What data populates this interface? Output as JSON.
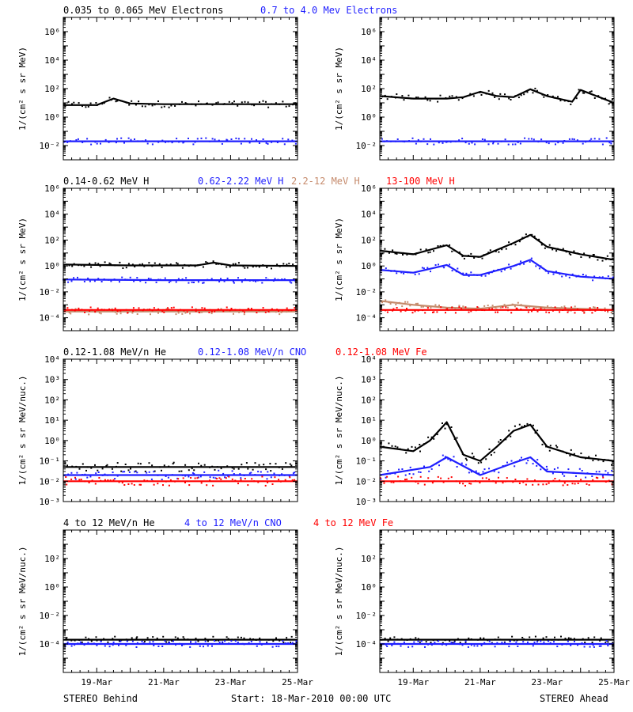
{
  "colors": {
    "black": "#000000",
    "blue": "#1f1fff",
    "brown": "#c58a6b",
    "red": "#ff0000"
  },
  "header_rows": [
    {
      "labels": [
        {
          "text": "0.035 to 0.065 MeV Electrons",
          "color": "#000000"
        },
        {
          "text": "0.7 to 4.0 Mev Electrons",
          "color": "#1f1fff"
        }
      ]
    },
    {
      "labels": [
        {
          "text": "0.14-0.62 MeV H",
          "color": "#000000"
        },
        {
          "text": "0.62-2.22 MeV H",
          "color": "#1f1fff"
        },
        {
          "text": "2.2-12 MeV H",
          "color": "#c58a6b"
        },
        {
          "text": "13-100 MeV H",
          "color": "#ff0000"
        }
      ]
    },
    {
      "labels": [
        {
          "text": "0.12-1.08 MeV/n He",
          "color": "#000000"
        },
        {
          "text": "0.12-1.08 MeV/n CNO",
          "color": "#1f1fff"
        },
        {
          "text": "0.12-1.08 MeV Fe",
          "color": "#ff0000"
        }
      ]
    },
    {
      "labels": [
        {
          "text": "4 to 12 MeV/n He",
          "color": "#000000"
        },
        {
          "text": "4 to 12 MeV/n CNO",
          "color": "#1f1fff"
        },
        {
          "text": "4 to 12 MeV Fe",
          "color": "#ff0000"
        }
      ]
    }
  ],
  "footer": {
    "left": "STEREO Behind",
    "center": "Start: 18-Mar-2010 00:00 UTC",
    "right": "STEREO Ahead"
  },
  "x_ticks": [
    "19-Mar",
    "21-Mar",
    "23-Mar",
    "25-Mar"
  ],
  "chart_data": [
    {
      "type": "scatter",
      "row": 0,
      "column": "STEREO Behind",
      "scale": "log",
      "ylabel": "1/(cm² s sr MeV)",
      "ylim": [
        0.001,
        10000000
      ],
      "yticks": [
        [
          -2,
          "10⁻²"
        ],
        [
          0,
          "10⁰"
        ],
        [
          2,
          "10²"
        ],
        [
          4,
          "10⁴"
        ],
        [
          6,
          "10⁶"
        ]
      ],
      "xlim": [
        "2010-03-18",
        "2010-03-25"
      ],
      "series": [
        {
          "name": "0.035 to 0.065 MeV Electrons",
          "color": "#000000",
          "x": [
            "2010-03-18",
            "2010-03-19",
            "2010-03-19 12:00",
            "2010-03-20",
            "2010-03-21",
            "2010-03-22",
            "2010-03-23",
            "2010-03-24",
            "2010-03-25"
          ],
          "y": [
            7,
            7,
            20,
            9,
            8,
            8,
            8,
            8,
            8
          ]
        },
        {
          "name": "0.7 to 4.0 Mev Electrons",
          "color": "#1f1fff",
          "x": [
            "2010-03-18",
            "2010-03-20",
            "2010-03-22",
            "2010-03-24",
            "2010-03-25"
          ],
          "y": [
            0.02,
            0.02,
            0.02,
            0.02,
            0.02
          ]
        }
      ]
    },
    {
      "type": "scatter",
      "row": 0,
      "column": "STEREO Ahead",
      "scale": "log",
      "ylabel": "1/(cm² s sr MeV)",
      "ylim": [
        0.001,
        10000000
      ],
      "yticks": [
        [
          -2,
          "10⁻²"
        ],
        [
          0,
          "10⁰"
        ],
        [
          2,
          "10²"
        ],
        [
          4,
          "10⁴"
        ],
        [
          6,
          "10⁶"
        ]
      ],
      "xlim": [
        "2010-03-18",
        "2010-03-25"
      ],
      "series": [
        {
          "name": "0.035 to 0.065 MeV Electrons",
          "color": "#000000",
          "x": [
            "2010-03-18",
            "2010-03-19",
            "2010-03-20",
            "2010-03-20 12:00",
            "2010-03-21",
            "2010-03-21 12:00",
            "2010-03-22",
            "2010-03-22 12:00",
            "2010-03-23",
            "2010-03-23 18:00",
            "2010-03-24",
            "2010-03-25"
          ],
          "y": [
            30,
            20,
            20,
            25,
            60,
            30,
            25,
            90,
            30,
            12,
            80,
            10
          ]
        },
        {
          "name": "0.7 to 4.0 Mev Electrons",
          "color": "#1f1fff",
          "x": [
            "2010-03-18",
            "2010-03-20",
            "2010-03-22",
            "2010-03-24",
            "2010-03-25"
          ],
          "y": [
            0.02,
            0.02,
            0.02,
            0.02,
            0.02
          ]
        }
      ]
    },
    {
      "type": "scatter",
      "row": 1,
      "column": "STEREO Behind",
      "scale": "log",
      "ylabel": "1/(cm² s sr MeV)",
      "ylim": [
        1e-05,
        1000000
      ],
      "yticks": [
        [
          -4,
          "10⁻⁴"
        ],
        [
          -2,
          "10⁻²"
        ],
        [
          0,
          "10⁰"
        ],
        [
          2,
          "10²"
        ],
        [
          4,
          "10⁴"
        ],
        [
          6,
          "10⁶"
        ]
      ],
      "xlim": [
        "2010-03-18",
        "2010-03-25"
      ],
      "series": [
        {
          "name": "0.14-0.62 MeV H",
          "color": "#000000",
          "x": [
            "2010-03-18",
            "2010-03-20",
            "2010-03-22",
            "2010-03-22 12:00",
            "2010-03-23",
            "2010-03-25"
          ],
          "y": [
            1.3,
            1.1,
            1.1,
            1.8,
            1.1,
            1.0
          ]
        },
        {
          "name": "0.62-2.22 MeV H",
          "color": "#1f1fff",
          "x": [
            "2010-03-18",
            "2010-03-21",
            "2010-03-25"
          ],
          "y": [
            0.09,
            0.08,
            0.08
          ]
        },
        {
          "name": "2.2-12 MeV H",
          "color": "#c58a6b",
          "x": [
            "2010-03-18",
            "2010-03-21",
            "2010-03-25"
          ],
          "y": [
            0.0003,
            0.0003,
            0.0003
          ]
        },
        {
          "name": "13-100 MeV H",
          "color": "#ff0000",
          "x": [
            "2010-03-18",
            "2010-03-21",
            "2010-03-25"
          ],
          "y": [
            0.0004,
            0.0004,
            0.0004
          ]
        }
      ]
    },
    {
      "type": "scatter",
      "row": 1,
      "column": "STEREO Ahead",
      "scale": "log",
      "ylabel": "1/(cm² s sr MeV)",
      "ylim": [
        1e-05,
        1000000
      ],
      "yticks": [
        [
          -4,
          "10⁻⁴"
        ],
        [
          -2,
          "10⁻²"
        ],
        [
          0,
          "10⁰"
        ],
        [
          2,
          "10²"
        ],
        [
          4,
          "10⁴"
        ],
        [
          6,
          "10⁶"
        ]
      ],
      "xlim": [
        "2010-03-18",
        "2010-03-25"
      ],
      "series": [
        {
          "name": "0.14-0.62 MeV H",
          "color": "#000000",
          "x": [
            "2010-03-18",
            "2010-03-19",
            "2010-03-20",
            "2010-03-20 12:00",
            "2010-03-21",
            "2010-03-22",
            "2010-03-22 12:00",
            "2010-03-23",
            "2010-03-24",
            "2010-03-25"
          ],
          "y": [
            15,
            8,
            40,
            6,
            5,
            60,
            250,
            30,
            8,
            3
          ]
        },
        {
          "name": "0.62-2.22 MeV H",
          "color": "#1f1fff",
          "x": [
            "2010-03-18",
            "2010-03-19",
            "2010-03-20",
            "2010-03-20 12:00",
            "2010-03-21",
            "2010-03-22",
            "2010-03-22 12:00",
            "2010-03-23",
            "2010-03-24",
            "2010-03-25"
          ],
          "y": [
            0.5,
            0.3,
            1.2,
            0.2,
            0.2,
            1.0,
            3,
            0.4,
            0.15,
            0.1
          ]
        },
        {
          "name": "2.2-12 MeV H",
          "color": "#c58a6b",
          "x": [
            "2010-03-18",
            "2010-03-19",
            "2010-03-20",
            "2010-03-21",
            "2010-03-22",
            "2010-03-23",
            "2010-03-25"
          ],
          "y": [
            0.002,
            0.001,
            0.0006,
            0.0005,
            0.001,
            0.0006,
            0.0004
          ]
        },
        {
          "name": "13-100 MeV H",
          "color": "#ff0000",
          "x": [
            "2010-03-18",
            "2010-03-21",
            "2010-03-25"
          ],
          "y": [
            0.0004,
            0.0004,
            0.0004
          ]
        }
      ]
    },
    {
      "type": "scatter",
      "row": 2,
      "column": "STEREO Behind",
      "scale": "log",
      "ylabel": "1/(cm² s sr MeV/nuc.)",
      "ylim": [
        0.001,
        10000
      ],
      "yticks": [
        [
          -3,
          "10⁻³"
        ],
        [
          -2,
          "10⁻²"
        ],
        [
          -1,
          "10⁻¹"
        ],
        [
          0,
          "10⁰"
        ],
        [
          1,
          "10¹"
        ],
        [
          2,
          "10²"
        ],
        [
          3,
          "10³"
        ],
        [
          4,
          "10⁴"
        ]
      ],
      "xlim": [
        "2010-03-18",
        "2010-03-25"
      ],
      "series": [
        {
          "name": "0.12-1.08 MeV/n He",
          "color": "#000000",
          "x": [
            "2010-03-18",
            "2010-03-21",
            "2010-03-25"
          ],
          "y": [
            0.05,
            0.05,
            0.05
          ]
        },
        {
          "name": "0.12-1.08 MeV/n CNO",
          "color": "#1f1fff",
          "x": [
            "2010-03-18",
            "2010-03-21",
            "2010-03-25"
          ],
          "y": [
            0.02,
            0.02,
            0.02
          ]
        },
        {
          "name": "0.12-1.08 MeV Fe",
          "color": "#ff0000",
          "x": [
            "2010-03-18",
            "2010-03-21",
            "2010-03-25"
          ],
          "y": [
            0.01,
            0.01,
            0.01
          ]
        }
      ]
    },
    {
      "type": "scatter",
      "row": 2,
      "column": "STEREO Ahead",
      "scale": "log",
      "ylabel": "1/(cm² s sr MeV/nuc.)",
      "ylim": [
        0.001,
        10000
      ],
      "yticks": [
        [
          -3,
          "10⁻³"
        ],
        [
          -2,
          "10⁻²"
        ],
        [
          -1,
          "10⁻¹"
        ],
        [
          0,
          "10⁰"
        ],
        [
          1,
          "10¹"
        ],
        [
          2,
          "10²"
        ],
        [
          3,
          "10³"
        ],
        [
          4,
          "10⁴"
        ]
      ],
      "xlim": [
        "2010-03-18",
        "2010-03-25"
      ],
      "series": [
        {
          "name": "0.12-1.08 MeV/n He",
          "color": "#000000",
          "x": [
            "2010-03-18",
            "2010-03-19",
            "2010-03-19 12:00",
            "2010-03-20",
            "2010-03-20 12:00",
            "2010-03-21",
            "2010-03-21 12:00",
            "2010-03-22",
            "2010-03-22 12:00",
            "2010-03-23",
            "2010-03-24",
            "2010-03-25"
          ],
          "y": [
            0.5,
            0.3,
            1.0,
            8,
            0.2,
            0.1,
            0.5,
            3,
            6,
            0.5,
            0.15,
            0.1
          ]
        },
        {
          "name": "0.12-1.08 MeV/n CNO",
          "color": "#1f1fff",
          "x": [
            "2010-03-18",
            "2010-03-19 12:00",
            "2010-03-20",
            "2010-03-21",
            "2010-03-22",
            "2010-03-22 12:00",
            "2010-03-23",
            "2010-03-25"
          ],
          "y": [
            0.02,
            0.05,
            0.15,
            0.02,
            0.08,
            0.15,
            0.03,
            0.02
          ]
        },
        {
          "name": "0.12-1.08 MeV Fe",
          "color": "#ff0000",
          "x": [
            "2010-03-18",
            "2010-03-21",
            "2010-03-25"
          ],
          "y": [
            0.01,
            0.01,
            0.01
          ]
        }
      ]
    },
    {
      "type": "scatter",
      "row": 3,
      "column": "STEREO Behind",
      "scale": "log",
      "ylabel": "1/(cm² s sr MeV/nuc.)",
      "ylim": [
        1e-06,
        10000
      ],
      "yticks": [
        [
          -4,
          "10⁻⁴"
        ],
        [
          -2,
          "10⁻²"
        ],
        [
          0,
          "10⁰"
        ],
        [
          2,
          "10²"
        ]
      ],
      "xlim": [
        "2010-03-18",
        "2010-03-25"
      ],
      "series": [
        {
          "name": "4 to 12 MeV/n He",
          "color": "#000000",
          "x": [
            "2010-03-18",
            "2010-03-21",
            "2010-03-25"
          ],
          "y": [
            0.0002,
            0.0002,
            0.0002
          ]
        },
        {
          "name": "4 to 12 MeV/n CNO",
          "color": "#1f1fff",
          "x": [
            "2010-03-18",
            "2010-03-21",
            "2010-03-25"
          ],
          "y": [
            0.0001,
            0.0001,
            0.0001
          ]
        },
        {
          "name": "4 to 12 MeV Fe",
          "color": "#ff0000",
          "x": [],
          "y": []
        }
      ]
    },
    {
      "type": "scatter",
      "row": 3,
      "column": "STEREO Ahead",
      "scale": "log",
      "ylabel": "1/(cm² s sr MeV/nuc.)",
      "ylim": [
        1e-06,
        10000
      ],
      "yticks": [
        [
          -4,
          "10⁻⁴"
        ],
        [
          -2,
          "10⁻²"
        ],
        [
          0,
          "10⁰"
        ],
        [
          2,
          "10²"
        ]
      ],
      "xlim": [
        "2010-03-18",
        "2010-03-25"
      ],
      "series": [
        {
          "name": "4 to 12 MeV/n He",
          "color": "#000000",
          "x": [
            "2010-03-18",
            "2010-03-21",
            "2010-03-25"
          ],
          "y": [
            0.0002,
            0.0002,
            0.0002
          ]
        },
        {
          "name": "4 to 12 MeV/n CNO",
          "color": "#1f1fff",
          "x": [
            "2010-03-18",
            "2010-03-21",
            "2010-03-25"
          ],
          "y": [
            0.0001,
            0.0001,
            0.0001
          ]
        },
        {
          "name": "4 to 12 MeV Fe",
          "color": "#ff0000",
          "x": [],
          "y": []
        }
      ]
    }
  ]
}
